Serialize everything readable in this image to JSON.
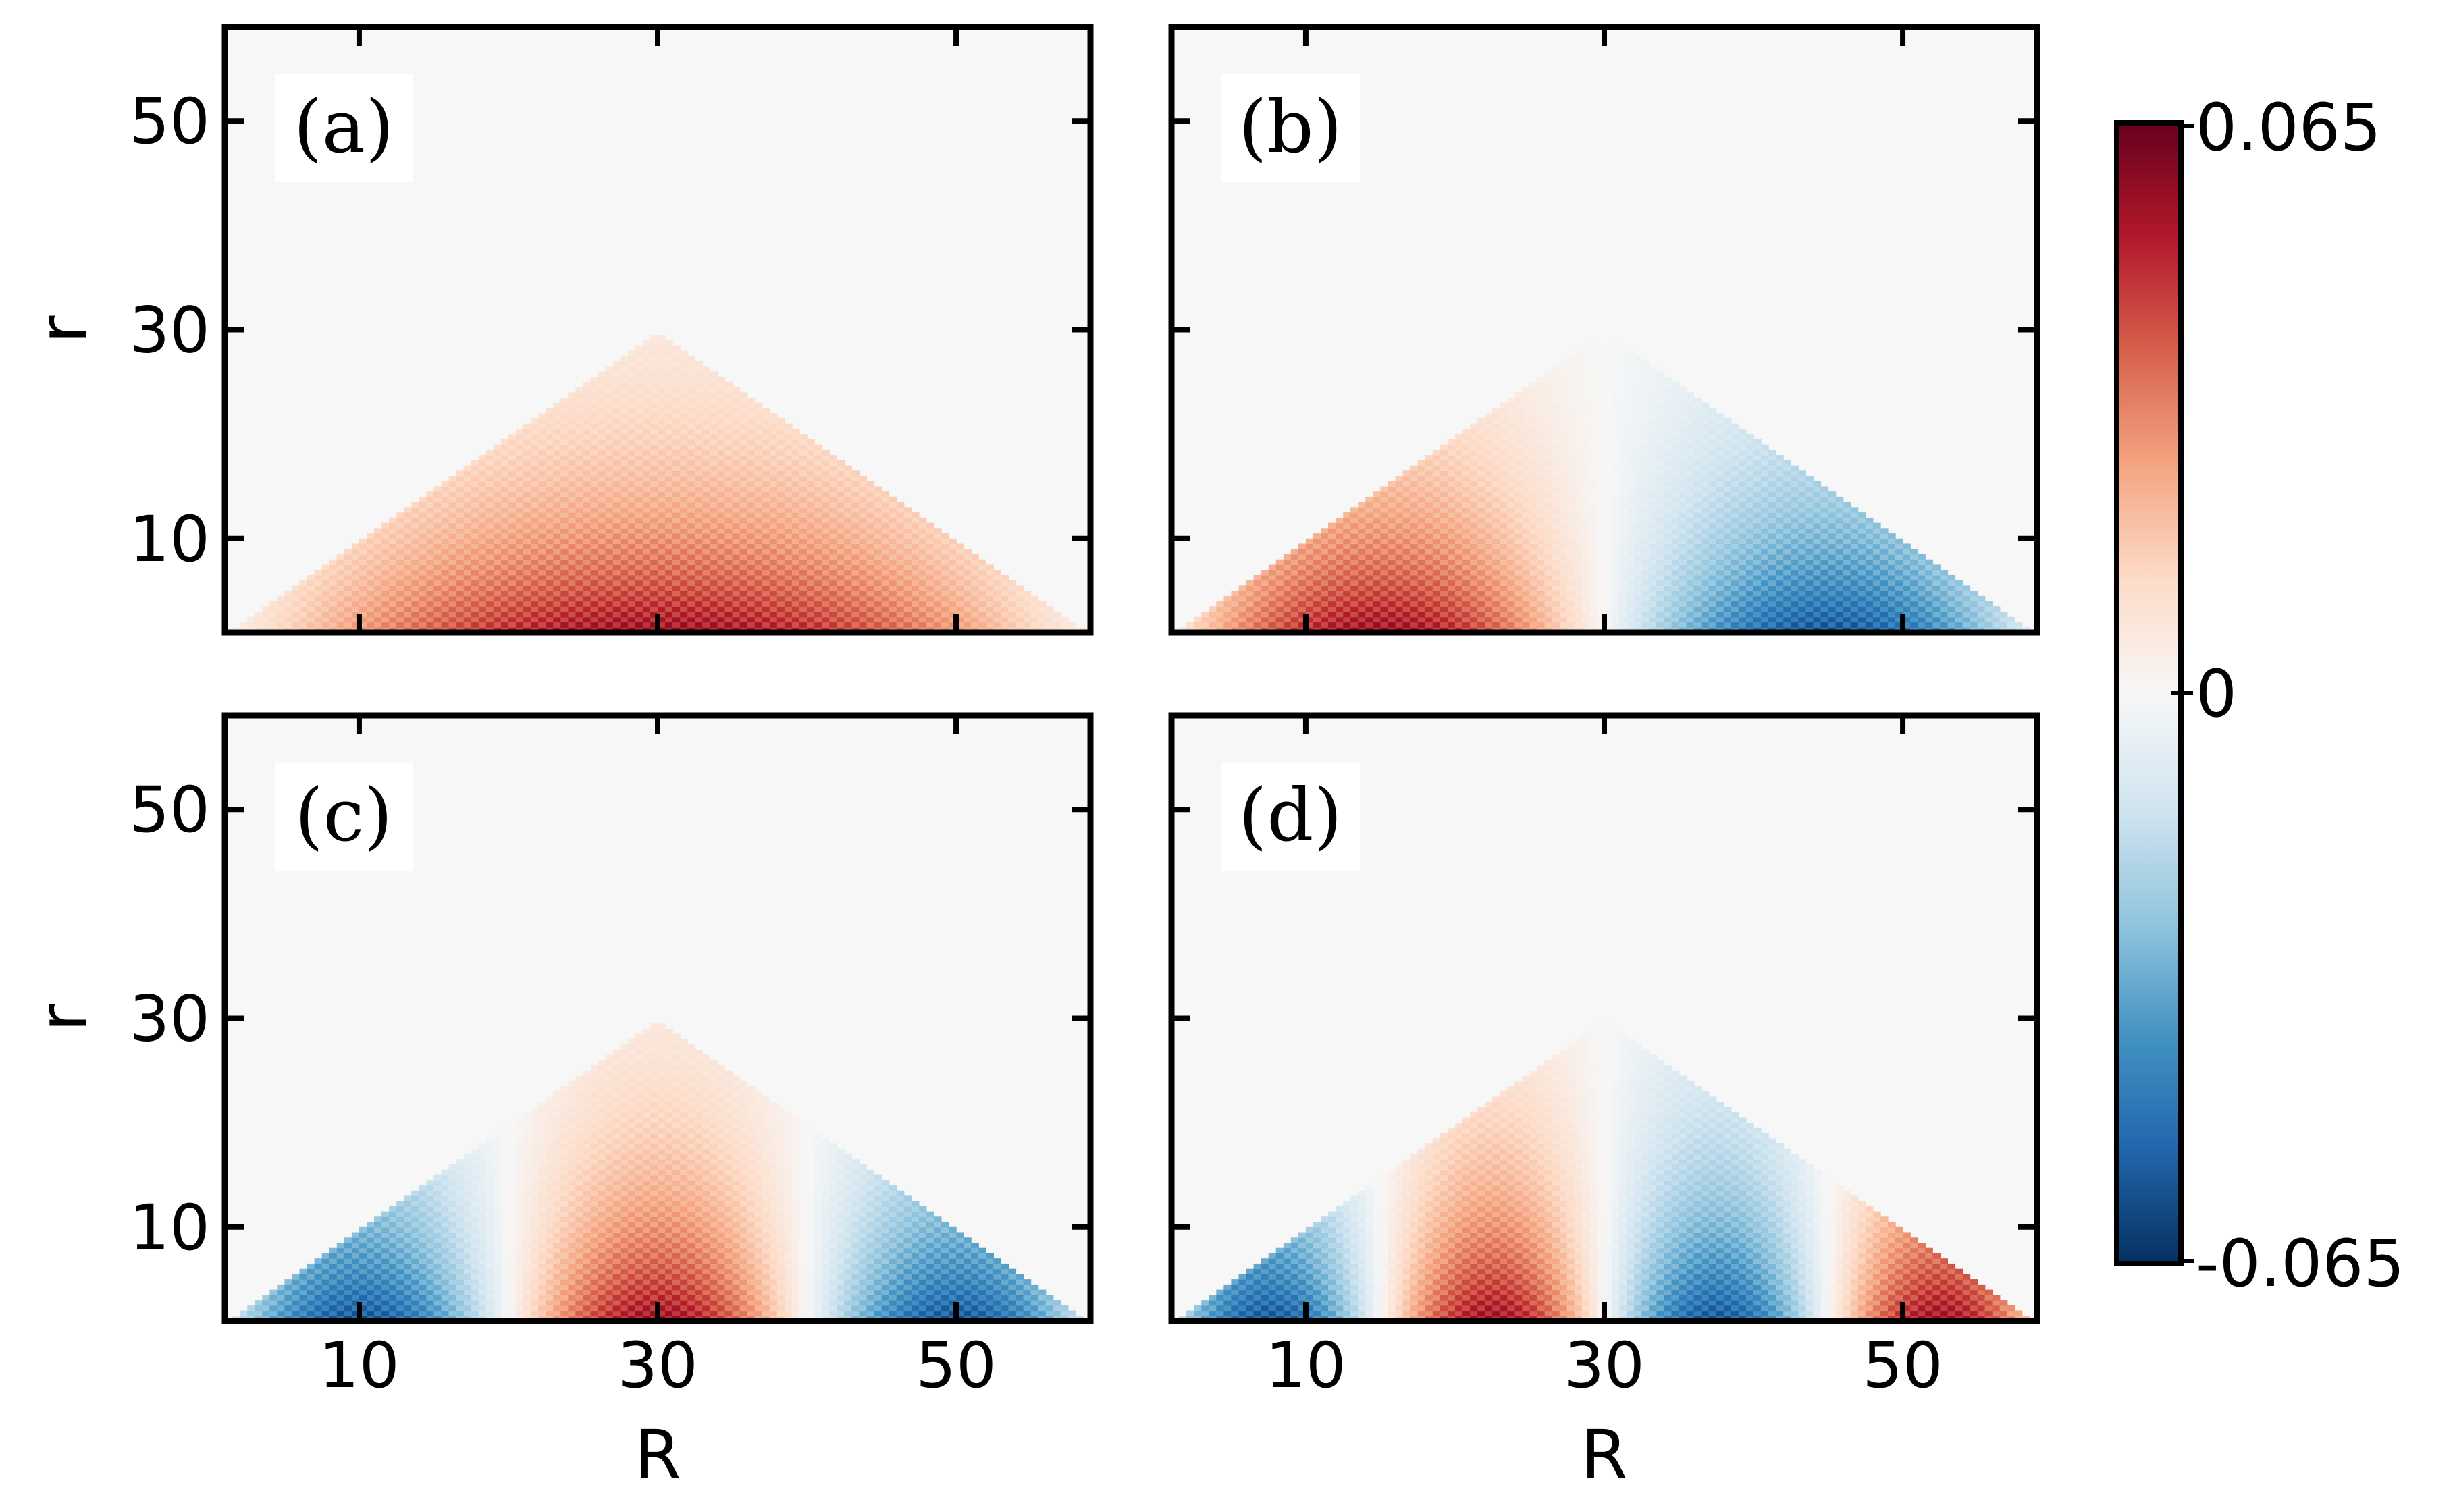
{
  "chart_data": {
    "type": "heatmap",
    "xlabel": "R",
    "ylabel": "r",
    "xlim": [
      1,
      59
    ],
    "ylim": [
      1,
      59
    ],
    "xticks": [
      10,
      30,
      50
    ],
    "yticks": [
      10,
      30,
      50
    ],
    "colormap": "RdBu_r",
    "colorbar": {
      "range": [
        -0.065,
        0.065
      ],
      "tick_labels": [
        "0.065",
        "0",
        "-0.065"
      ],
      "colors": [
        "#67001f",
        "#b2182b",
        "#d6604d",
        "#f4a582",
        "#fddbc7",
        "#f7f7f7",
        "#d1e5f0",
        "#92c5de",
        "#4393c3",
        "#2166ac",
        "#053061"
      ]
    },
    "support_region": "triangle r < R and r < 60 - R",
    "panels": [
      {
        "label": "(a)",
        "lobes": 1,
        "sign_pattern": [
          1
        ],
        "peak": 0.065
      },
      {
        "label": "(b)",
        "lobes": 2,
        "sign_pattern": [
          1,
          -1
        ],
        "peak": 0.065
      },
      {
        "label": "(c)",
        "lobes": 3,
        "sign_pattern": [
          -1,
          1,
          -1
        ],
        "peak": 0.065
      },
      {
        "label": "(d)",
        "lobes": 4,
        "sign_pattern": [
          -1,
          1,
          -1,
          1
        ],
        "peak": 0.065
      }
    ]
  }
}
